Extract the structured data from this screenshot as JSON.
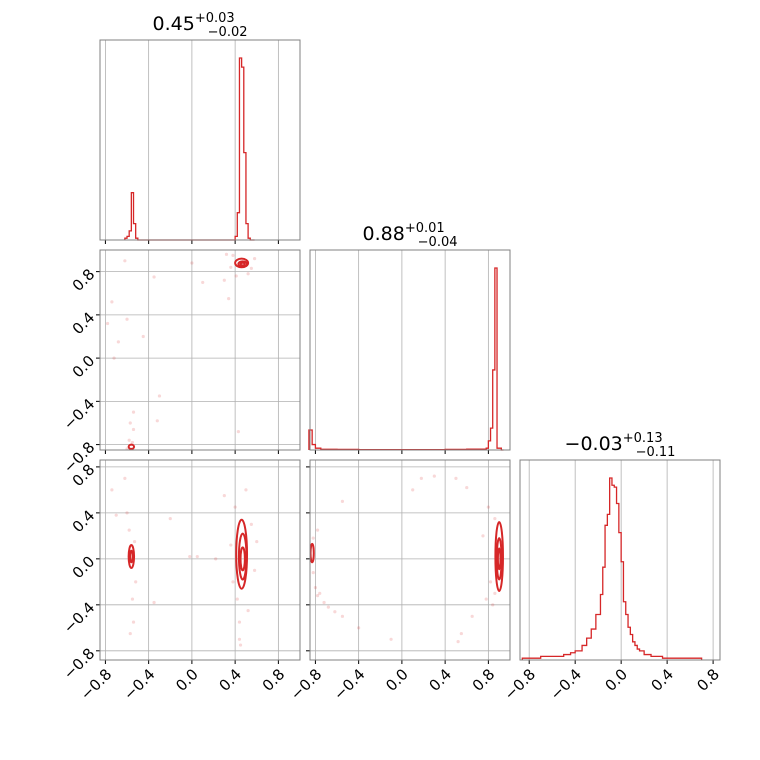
{
  "chart_data": {
    "type": "corner",
    "colors": {
      "series": "#d62728",
      "grid": "#b0b0b0",
      "frame": "#808080"
    },
    "grid": true,
    "tick_labels": [
      "−0.8",
      "−0.4",
      "0.0",
      "0.4",
      "0.8"
    ],
    "tick_values": [
      -0.8,
      -0.4,
      0.0,
      0.4,
      0.8
    ],
    "axis_range": [
      -0.85,
      1.0
    ],
    "parameters": [
      {
        "summary": {
          "median": "0.45",
          "plus": "+0.03",
          "minus": "−0.02"
        },
        "range": [
          -0.85,
          1.0
        ],
        "histogram": {
          "bin_edges": [
            -0.62,
            -0.6,
            -0.58,
            -0.56,
            -0.54,
            -0.52,
            -0.5,
            0.38,
            0.4,
            0.42,
            0.44,
            0.46,
            0.48,
            0.5,
            0.52,
            0.54,
            0.56,
            0.58
          ],
          "counts": [
            1,
            2,
            5,
            26,
            9,
            1,
            0,
            0,
            2,
            15,
            100,
            95,
            48,
            9,
            1,
            0,
            0
          ],
          "ylim": [
            0,
            100
          ]
        }
      },
      {
        "summary": {
          "median": "0.88",
          "plus": "+0.01",
          "minus": "−0.04"
        },
        "range": [
          -0.85,
          1.0
        ],
        "histogram": {
          "bin_edges": [
            -0.86,
            -0.83,
            -0.8,
            -0.75,
            -0.6,
            -0.4,
            -0.2,
            0.0,
            0.2,
            0.4,
            0.6,
            0.78,
            0.8,
            0.82,
            0.84,
            0.86,
            0.88,
            0.9,
            0.92,
            0.94
          ],
          "counts": [
            11,
            3,
            1,
            0.4,
            0.3,
            0.2,
            0.2,
            0.2,
            0.2,
            0.3,
            0.5,
            1,
            5,
            12,
            44,
            100,
            1,
            1,
            0
          ],
          "ylim": [
            0,
            100
          ]
        }
      },
      {
        "summary": {
          "median": "−0.03",
          "plus": "+0.13",
          "minus": "−0.11"
        },
        "range": [
          -0.88,
          0.86
        ],
        "histogram": {
          "bin_edges": [
            -0.86,
            -0.8,
            -0.7,
            -0.6,
            -0.5,
            -0.44,
            -0.4,
            -0.34,
            -0.3,
            -0.26,
            -0.22,
            -0.18,
            -0.16,
            -0.14,
            -0.12,
            -0.1,
            -0.08,
            -0.06,
            -0.04,
            -0.02,
            0.0,
            0.02,
            0.04,
            0.06,
            0.08,
            0.1,
            0.12,
            0.14,
            0.16,
            0.2,
            0.26,
            0.3,
            0.36,
            0.44,
            0.56,
            0.7
          ],
          "counts": [
            1,
            1,
            2,
            2,
            3,
            4,
            5,
            8,
            12,
            17,
            25,
            36,
            51,
            74,
            80,
            100,
            96,
            95,
            86,
            70,
            54,
            32,
            25,
            18,
            14,
            10,
            8,
            6,
            5,
            3,
            2,
            2,
            1,
            1,
            1
          ],
          "ylim": [
            0,
            100
          ]
        }
      }
    ],
    "joint_panels": [
      {
        "x_param": 0,
        "y_param": 1,
        "contours": [
          {
            "cx": 0.46,
            "cy": 0.88,
            "rx": 0.06,
            "ry": 0.04
          },
          {
            "cx": 0.47,
            "cy": 0.87,
            "rx": 0.04,
            "ry": 0.025
          },
          {
            "cx": 0.47,
            "cy": 0.87,
            "rx": 0.02,
            "ry": 0.012
          },
          {
            "cx": -0.56,
            "cy": -0.82,
            "rx": 0.025,
            "ry": 0.02
          }
        ],
        "scatter": [
          [
            0.38,
            0.95
          ],
          [
            0.36,
            0.84
          ],
          [
            0.52,
            0.78
          ],
          [
            0.55,
            0.83
          ],
          [
            0.32,
            0.96
          ],
          [
            0.41,
            0.76
          ],
          [
            0.58,
            0.92
          ],
          [
            -0.55,
            -0.78
          ],
          [
            -0.58,
            -0.76
          ],
          [
            -0.6,
            -0.84
          ],
          [
            -0.54,
            -0.66
          ],
          [
            -0.57,
            -0.6
          ],
          [
            -0.72,
            0.0
          ],
          [
            -0.78,
            0.32
          ],
          [
            -0.74,
            0.52
          ],
          [
            -0.6,
            0.36
          ],
          [
            -0.3,
            -0.35
          ],
          [
            -0.32,
            -0.58
          ],
          [
            -0.54,
            -0.5
          ],
          [
            0.0,
            0.88
          ],
          [
            -0.35,
            0.75
          ],
          [
            0.43,
            -0.68
          ],
          [
            0.1,
            0.7
          ],
          [
            0.34,
            0.55
          ],
          [
            -0.68,
            0.15
          ],
          [
            -0.62,
            0.9
          ],
          [
            -0.45,
            0.2
          ],
          [
            0.3,
            0.72
          ]
        ]
      },
      {
        "x_param": 0,
        "y_param": 2,
        "contours": [
          {
            "cx": 0.46,
            "cy": 0.04,
            "rx": 0.05,
            "ry": 0.3
          },
          {
            "cx": 0.47,
            "cy": 0.02,
            "rx": 0.035,
            "ry": 0.2
          },
          {
            "cx": 0.47,
            "cy": 0.0,
            "rx": 0.02,
            "ry": 0.1
          },
          {
            "cx": -0.56,
            "cy": 0.02,
            "rx": 0.025,
            "ry": 0.1
          },
          {
            "cx": -0.56,
            "cy": 0.02,
            "rx": 0.012,
            "ry": 0.05
          }
        ],
        "scatter": [
          [
            0.4,
            0.45
          ],
          [
            0.42,
            -0.35
          ],
          [
            0.52,
            -0.45
          ],
          [
            0.44,
            -0.55
          ],
          [
            0.55,
            0.3
          ],
          [
            0.38,
            -0.2
          ],
          [
            0.5,
            0.6
          ],
          [
            0.45,
            -0.75
          ],
          [
            0.36,
            0.12
          ],
          [
            0.58,
            -0.1
          ],
          [
            -0.55,
            -0.35
          ],
          [
            -0.58,
            0.25
          ],
          [
            -0.54,
            -0.55
          ],
          [
            -0.57,
            -0.65
          ],
          [
            -0.6,
            0.4
          ],
          [
            -0.53,
            0.15
          ],
          [
            -0.74,
            0.6
          ],
          [
            -0.7,
            0.38
          ],
          [
            -0.62,
            0.7
          ],
          [
            -0.35,
            -0.38
          ],
          [
            -0.02,
            0.02
          ],
          [
            0.05,
            0.02
          ],
          [
            0.22,
            0.0
          ],
          [
            0.3,
            0.55
          ],
          [
            -0.2,
            0.35
          ],
          [
            0.44,
            -0.7
          ],
          [
            -0.52,
            -0.2
          ],
          [
            0.6,
            0.15
          ]
        ]
      },
      {
        "x_param": 1,
        "y_param": 2,
        "contours": [
          {
            "cx": 0.9,
            "cy": 0.02,
            "rx": 0.035,
            "ry": 0.3
          },
          {
            "cx": 0.9,
            "cy": 0.0,
            "rx": 0.022,
            "ry": 0.18
          },
          {
            "cx": 0.9,
            "cy": 0.0,
            "rx": 0.012,
            "ry": 0.09
          },
          {
            "cx": -0.83,
            "cy": 0.05,
            "rx": 0.015,
            "ry": 0.08
          }
        ],
        "scatter": [
          [
            -0.82,
            -0.12
          ],
          [
            -0.8,
            -0.25
          ],
          [
            -0.78,
            -0.32
          ],
          [
            -0.76,
            -0.3
          ],
          [
            -0.72,
            -0.38
          ],
          [
            -0.68,
            -0.42
          ],
          [
            -0.62,
            -0.46
          ],
          [
            -0.55,
            -0.5
          ],
          [
            -0.4,
            -0.6
          ],
          [
            -0.82,
            0.18
          ],
          [
            -0.78,
            0.25
          ],
          [
            0.8,
            0.45
          ],
          [
            0.82,
            -0.2
          ],
          [
            0.78,
            -0.35
          ],
          [
            0.86,
            0.35
          ],
          [
            0.84,
            -0.4
          ],
          [
            0.6,
            0.62
          ],
          [
            0.5,
            0.7
          ],
          [
            0.3,
            0.72
          ],
          [
            0.18,
            0.7
          ],
          [
            -0.1,
            -0.7
          ],
          [
            0.52,
            -0.72
          ],
          [
            0.65,
            -0.5
          ],
          [
            0.86,
            -0.3
          ],
          [
            -0.55,
            0.5
          ],
          [
            0.1,
            0.6
          ],
          [
            0.75,
            0.2
          ],
          [
            0.55,
            -0.65
          ]
        ]
      }
    ]
  }
}
